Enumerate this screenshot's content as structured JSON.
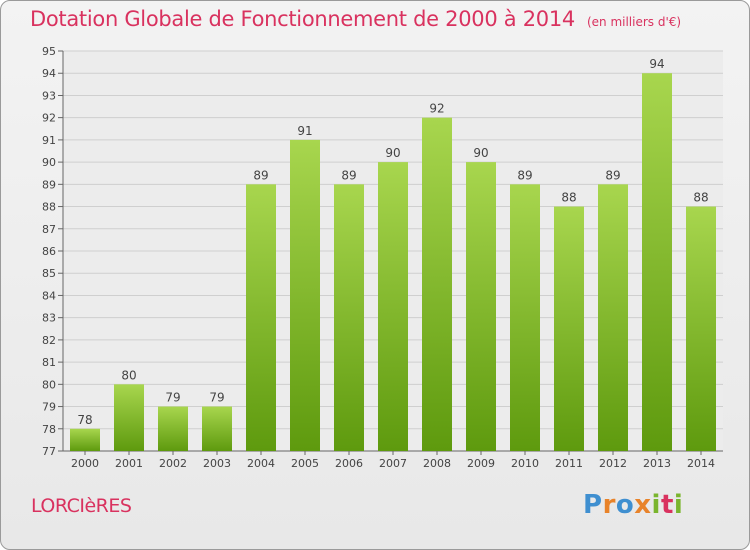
{
  "header": {
    "title": "Dotation Globale de Fonctionnement de 2000 à 2014",
    "unit": "(en milliers d'€)"
  },
  "commune": "LORCIèRES",
  "logo": {
    "text": "Proxiti",
    "letter_colors": [
      "#3f8fd0",
      "#e8832a",
      "#3f8fd0",
      "#e8832a",
      "#7ab52e",
      "#d9325f",
      "#7ab52e"
    ]
  },
  "colors": {
    "bar_light": "#a8d64e",
    "bar_dark": "#5e9a0e",
    "title": "#d9325f",
    "grid": "#cfcfcf"
  },
  "chart_data": {
    "type": "bar",
    "categories": [
      "2000",
      "2001",
      "2002",
      "2003",
      "2004",
      "2005",
      "2006",
      "2007",
      "2008",
      "2009",
      "2010",
      "2011",
      "2012",
      "2013",
      "2014"
    ],
    "values": [
      78,
      80,
      79,
      79,
      89,
      91,
      89,
      90,
      92,
      90,
      89,
      88,
      89,
      94,
      88
    ],
    "ylim": [
      77,
      95
    ],
    "yticks": [
      77,
      78,
      79,
      80,
      81,
      82,
      83,
      84,
      85,
      86,
      87,
      88,
      89,
      90,
      91,
      92,
      93,
      94,
      95
    ],
    "grid": true,
    "data_labels": true
  }
}
